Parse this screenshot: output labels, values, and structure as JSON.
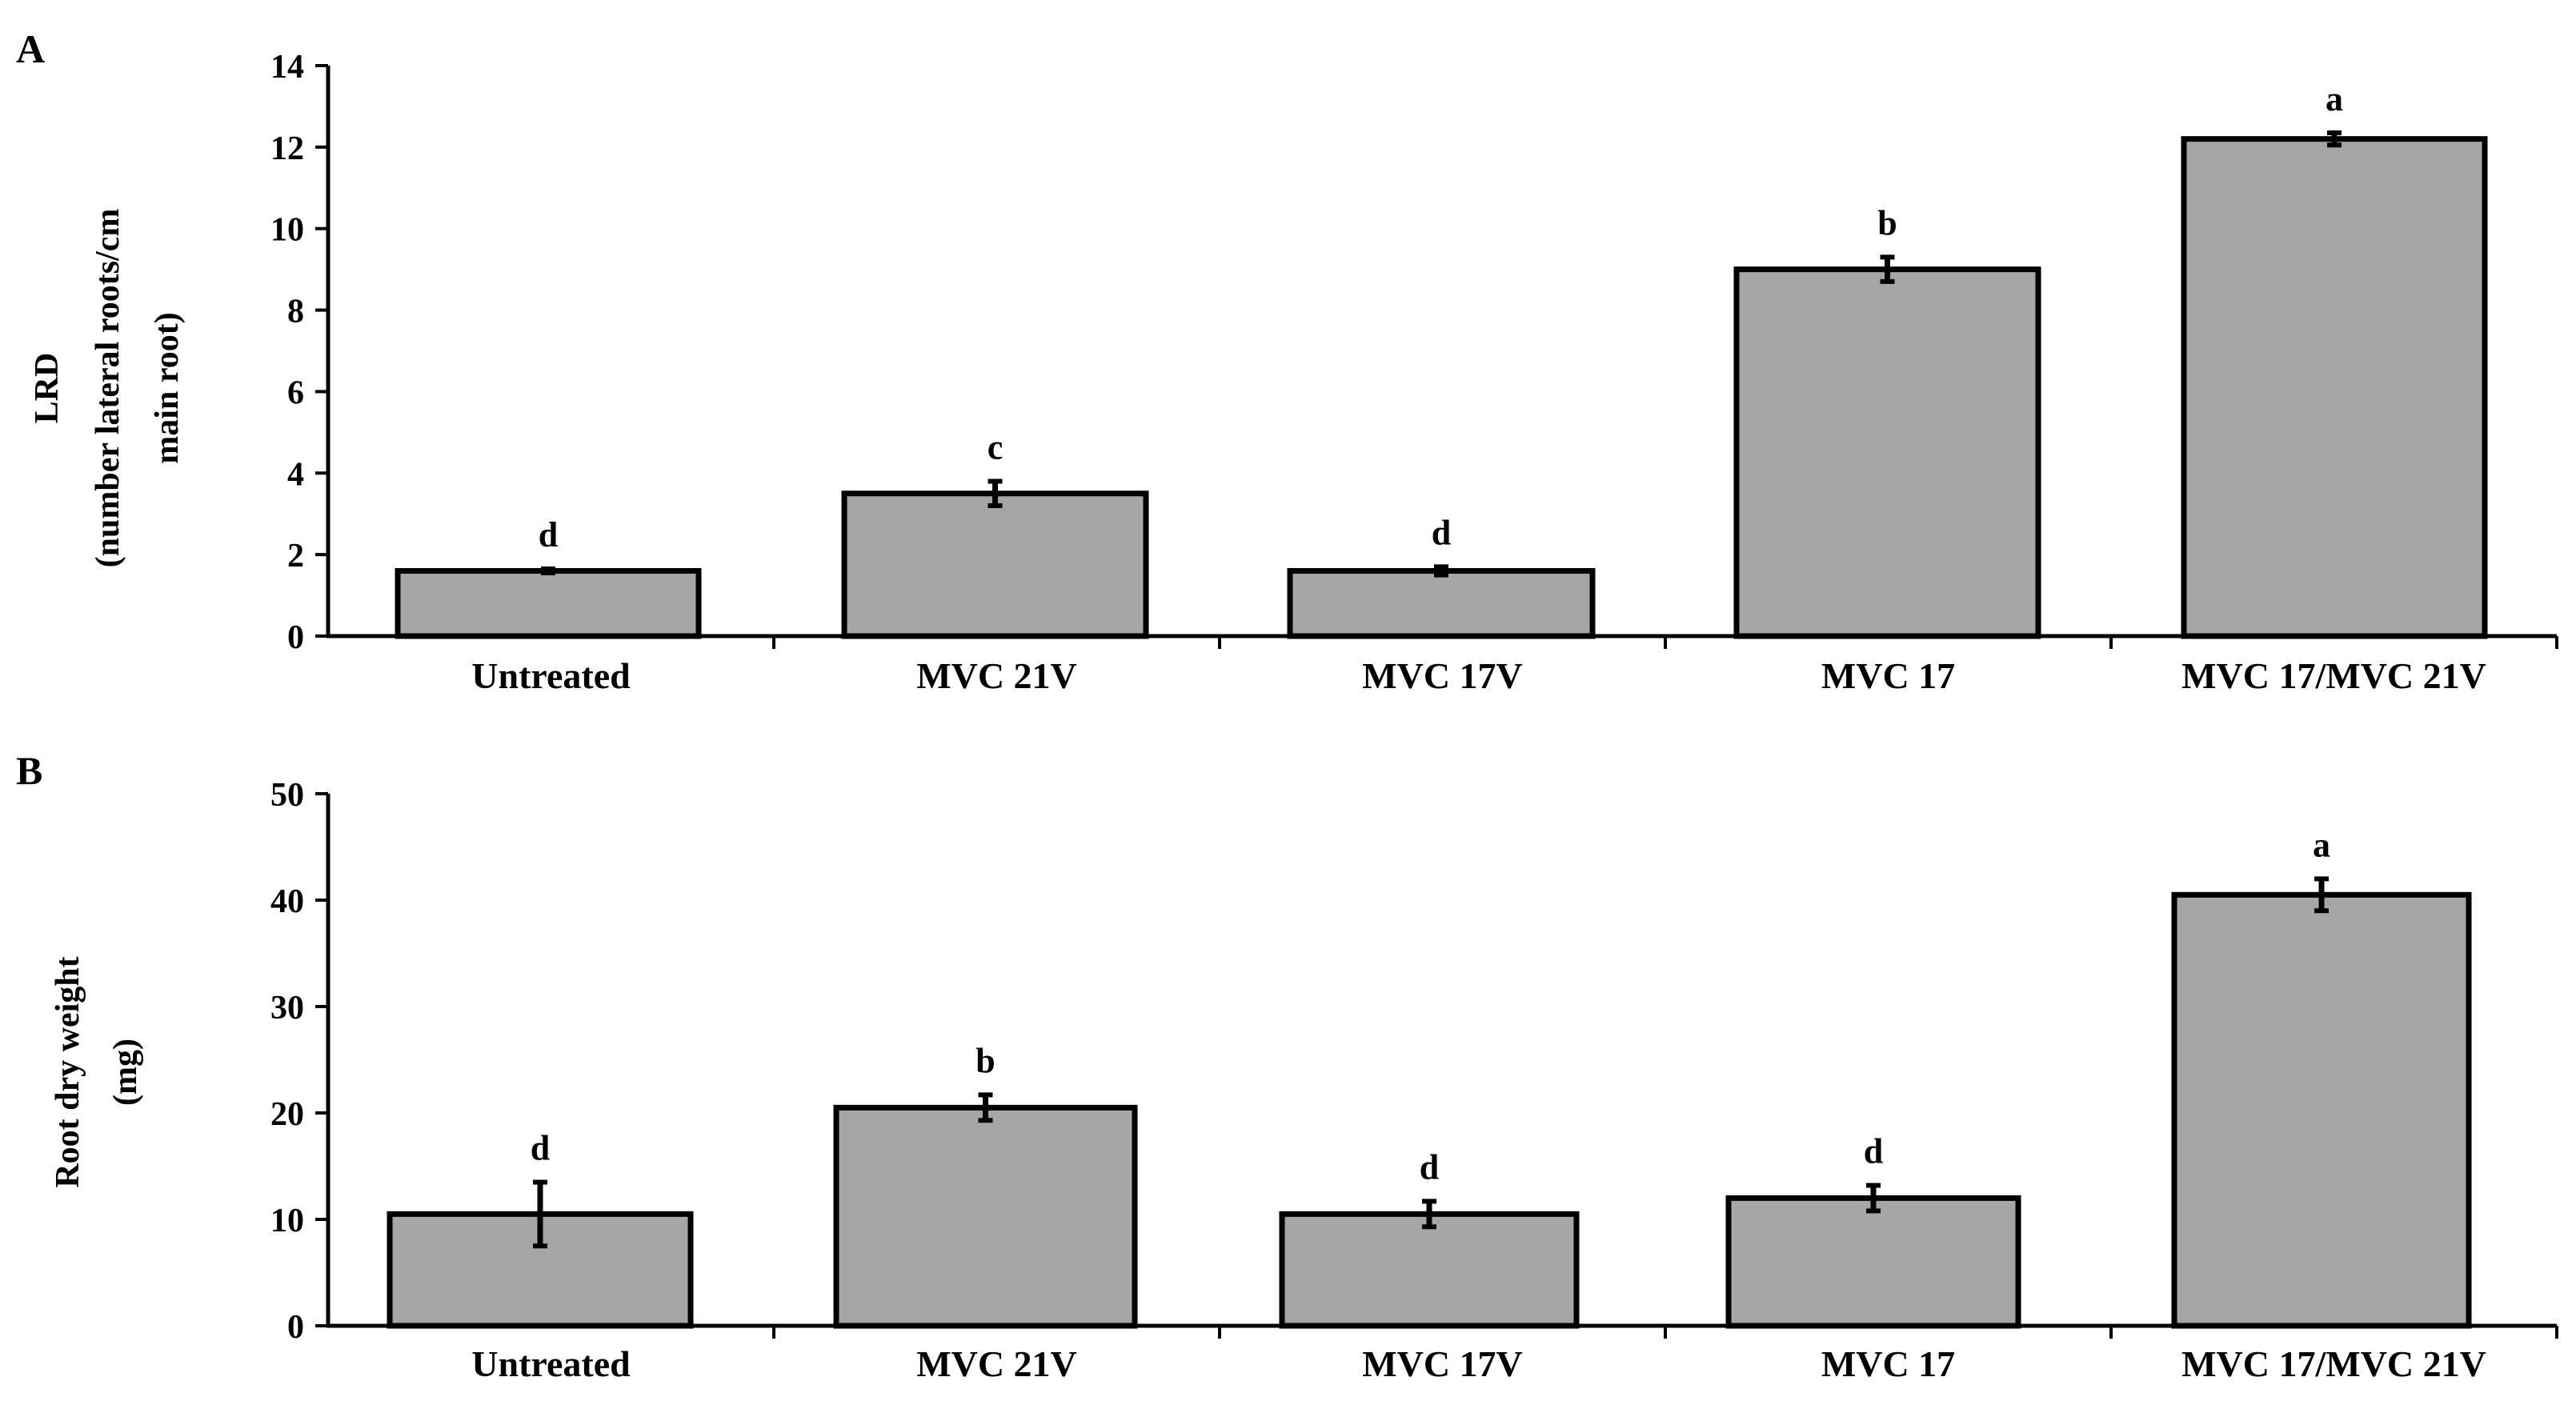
{
  "colors": {
    "bar_fill": "#a6a6a6",
    "stroke": "#000000",
    "background": "#ffffff"
  },
  "chart_data": [
    {
      "panel_label": "A",
      "type": "bar",
      "title": "",
      "ylabel_lines": [
        "LRD",
        "(number lateral roots/cm",
        "main root)"
      ],
      "xlabel": "",
      "categories": [
        "Untreated",
        "MVC 21V",
        "MVC 17V",
        "MVC 17",
        "MVC 17/MVC 21V"
      ],
      "values": [
        1.6,
        3.5,
        1.6,
        9.0,
        12.2
      ],
      "errors": [
        0.05,
        0.3,
        0.1,
        0.3,
        0.15
      ],
      "letters": [
        "d",
        "c",
        "d",
        "b",
        "a"
      ],
      "ylim": [
        0,
        14
      ],
      "yticks": [
        0,
        2,
        4,
        6,
        8,
        10,
        12,
        14
      ],
      "grid": false
    },
    {
      "panel_label": "B",
      "type": "bar",
      "title": "",
      "ylabel_lines": [
        "Root dry weight",
        "(mg)"
      ],
      "xlabel": "",
      "categories": [
        "Untreated",
        "MVC 21V",
        "MVC 17V",
        "MVC 17",
        "MVC 17/MVC 21V"
      ],
      "values": [
        10.5,
        20.5,
        10.5,
        12.0,
        40.5
      ],
      "errors": [
        3.0,
        1.2,
        1.2,
        1.2,
        1.5
      ],
      "letters": [
        "d",
        "b",
        "d",
        "d",
        "a"
      ],
      "ylim": [
        0,
        50
      ],
      "yticks": [
        0,
        10,
        20,
        30,
        40,
        50
      ],
      "grid": false
    }
  ]
}
